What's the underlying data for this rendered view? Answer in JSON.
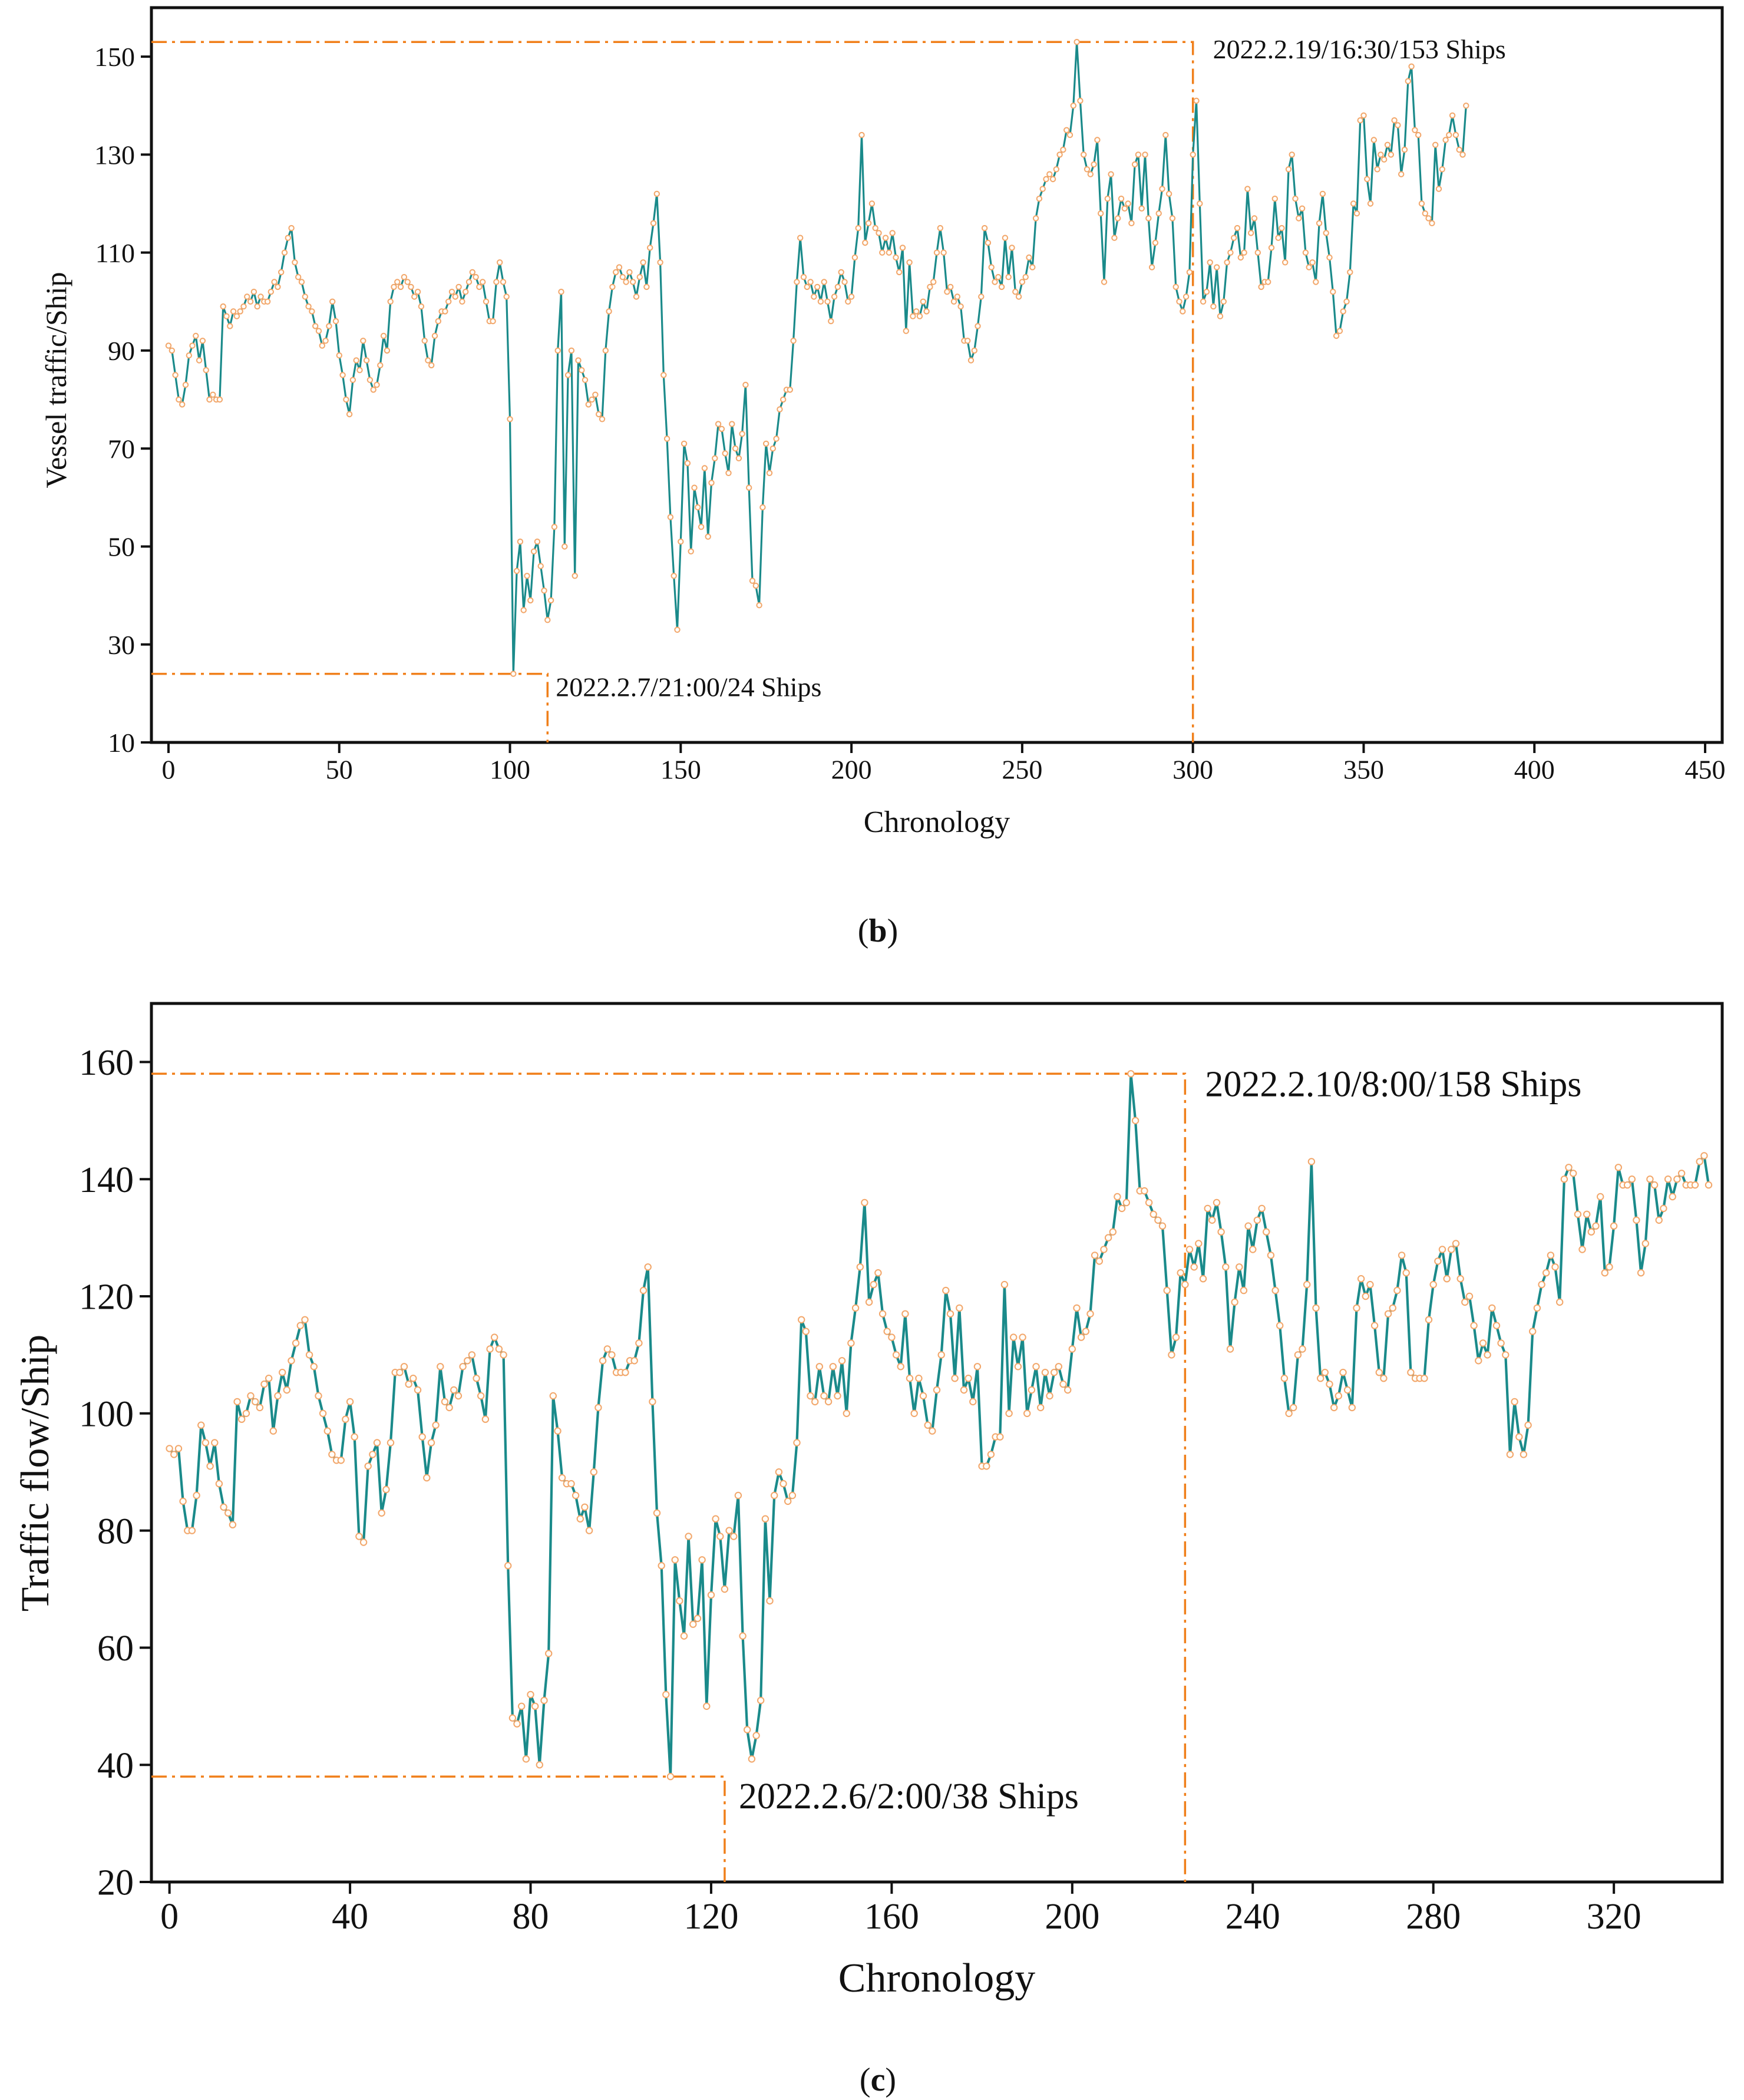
{
  "colors": {
    "line": "#1a8a8a",
    "marker_stroke": "#f2a66a",
    "marker_fill": "#fffdf8",
    "guide": "#f07f1a",
    "frame": "#111111"
  },
  "chart_data": [
    {
      "id": "b",
      "type": "line",
      "panel_label_open": "(",
      "panel_label_letter": "b",
      "panel_label_close": ")",
      "title": "",
      "xlabel": "Chronology",
      "ylabel": "Vessel traffic/Ship",
      "xlim": [
        -5,
        455
      ],
      "ylim": [
        10,
        160
      ],
      "xticks": [
        0,
        50,
        100,
        150,
        200,
        250,
        300,
        350,
        400,
        450
      ],
      "yticks": [
        10,
        30,
        50,
        70,
        90,
        110,
        130,
        150
      ],
      "x_start": 0,
      "x_step": 1,
      "values": [
        91,
        90,
        85,
        80,
        79,
        83,
        89,
        91,
        93,
        88,
        92,
        86,
        80,
        81,
        80,
        80,
        99,
        97,
        95,
        98,
        97,
        98,
        99,
        101,
        100,
        102,
        99,
        101,
        100,
        100,
        102,
        104,
        103,
        106,
        110,
        113,
        115,
        108,
        105,
        104,
        101,
        99,
        98,
        95,
        94,
        91,
        92,
        95,
        100,
        96,
        89,
        85,
        80,
        77,
        84,
        88,
        86,
        92,
        88,
        84,
        82,
        83,
        87,
        93,
        90,
        100,
        103,
        104,
        103,
        105,
        104,
        103,
        101,
        102,
        99,
        92,
        88,
        87,
        93,
        96,
        98,
        98,
        100,
        102,
        101,
        103,
        100,
        102,
        104,
        106,
        105,
        103,
        104,
        100,
        96,
        96,
        104,
        108,
        104,
        101,
        76,
        24,
        45,
        51,
        37,
        44,
        39,
        49,
        51,
        46,
        41,
        35,
        39,
        54,
        90,
        102,
        50,
        85,
        90,
        44,
        88,
        86,
        84,
        79,
        80,
        81,
        77,
        76,
        90,
        98,
        103,
        106,
        107,
        105,
        104,
        106,
        104,
        101,
        105,
        108,
        103,
        111,
        116,
        122,
        108,
        85,
        72,
        56,
        44,
        33,
        51,
        71,
        67,
        49,
        62,
        58,
        54,
        66,
        52,
        63,
        68,
        75,
        74,
        69,
        65,
        75,
        70,
        68,
        73,
        83,
        62,
        43,
        42,
        38,
        58,
        71,
        65,
        70,
        72,
        78,
        80,
        82,
        82,
        92,
        104,
        113,
        105,
        103,
        104,
        101,
        103,
        100,
        104,
        100,
        96,
        101,
        103,
        106,
        104,
        100,
        101,
        109,
        115,
        134,
        112,
        116,
        120,
        115,
        114,
        110,
        113,
        110,
        114,
        109,
        106,
        111,
        94,
        108,
        97,
        98,
        97,
        100,
        98,
        103,
        104,
        110,
        115,
        110,
        102,
        103,
        100,
        101,
        99,
        92,
        92,
        88,
        90,
        95,
        101,
        115,
        112,
        107,
        104,
        105,
        103,
        113,
        105,
        111,
        102,
        101,
        104,
        105,
        109,
        107,
        117,
        121,
        123,
        125,
        126,
        125,
        127,
        130,
        131,
        135,
        134,
        140,
        153,
        141,
        130,
        127,
        126,
        128,
        133,
        118,
        104,
        121,
        126,
        113,
        117,
        121,
        119,
        120,
        116,
        128,
        130,
        119,
        130,
        117,
        107,
        112,
        118,
        123,
        134,
        122,
        117,
        103,
        100,
        98,
        101,
        106,
        130,
        141,
        120,
        100,
        102,
        108,
        99,
        107,
        97,
        100,
        108,
        110,
        113,
        115,
        109,
        110,
        123,
        114,
        117,
        110,
        103,
        104,
        104,
        111,
        121,
        113,
        115,
        108,
        127,
        130,
        121,
        117,
        119,
        110,
        107,
        108,
        104,
        116,
        122,
        114,
        109,
        102,
        93,
        94,
        98,
        100,
        106,
        120,
        118,
        137,
        138,
        125,
        120,
        133,
        127,
        130,
        129,
        132,
        130,
        137,
        136,
        126,
        131,
        145,
        148,
        135,
        134,
        120,
        118,
        117,
        116,
        132,
        123,
        127,
        133,
        134,
        138,
        134,
        131,
        130,
        140
      ],
      "annotations": [
        {
          "x": 111,
          "y": 24,
          "label": "2022.2.7/21:00/24 Ships"
        },
        {
          "x": 300,
          "y": 153,
          "label": "2022.2.19/16:30/153 Ships"
        }
      ]
    },
    {
      "id": "c",
      "type": "line",
      "panel_label_open": "(",
      "panel_label_letter": "c",
      "panel_label_close": ")",
      "title": "",
      "xlabel": "Chronology",
      "ylabel": "Traffic flow/Ship",
      "xlim": [
        -4,
        344
      ],
      "ylim": [
        20,
        170
      ],
      "xticks": [
        0,
        40,
        80,
        120,
        160,
        200,
        240,
        280,
        320
      ],
      "yticks": [
        20,
        40,
        60,
        80,
        100,
        120,
        140,
        160
      ],
      "x_start": 0,
      "x_step": 1,
      "values": [
        94,
        93,
        94,
        85,
        80,
        80,
        86,
        98,
        95,
        91,
        95,
        88,
        84,
        83,
        81,
        102,
        99,
        100,
        103,
        102,
        101,
        105,
        106,
        97,
        103,
        107,
        104,
        109,
        112,
        115,
        116,
        110,
        108,
        103,
        100,
        97,
        93,
        92,
        92,
        99,
        102,
        96,
        79,
        78,
        91,
        93,
        95,
        83,
        87,
        95,
        107,
        107,
        108,
        105,
        106,
        104,
        96,
        89,
        95,
        98,
        108,
        102,
        101,
        104,
        103,
        108,
        109,
        110,
        106,
        103,
        99,
        111,
        113,
        111,
        110,
        74,
        48,
        47,
        50,
        41,
        52,
        50,
        40,
        51,
        59,
        103,
        97,
        89,
        88,
        88,
        86,
        82,
        84,
        80,
        90,
        101,
        109,
        111,
        110,
        107,
        107,
        107,
        109,
        109,
        112,
        121,
        125,
        102,
        83,
        74,
        52,
        38,
        75,
        68,
        62,
        79,
        64,
        65,
        75,
        50,
        69,
        82,
        79,
        70,
        80,
        79,
        86,
        62,
        46,
        41,
        45,
        51,
        82,
        68,
        86,
        90,
        88,
        85,
        86,
        95,
        116,
        114,
        103,
        102,
        108,
        103,
        102,
        108,
        103,
        109,
        100,
        112,
        118,
        125,
        136,
        119,
        122,
        124,
        117,
        114,
        113,
        110,
        108,
        117,
        106,
        100,
        106,
        103,
        98,
        97,
        104,
        110,
        121,
        117,
        106,
        118,
        104,
        106,
        102,
        108,
        91,
        91,
        93,
        96,
        96,
        122,
        100,
        113,
        108,
        113,
        100,
        104,
        108,
        101,
        107,
        103,
        107,
        108,
        105,
        104,
        111,
        118,
        113,
        114,
        117,
        127,
        126,
        128,
        130,
        131,
        137,
        135,
        136,
        158,
        150,
        138,
        138,
        136,
        134,
        133,
        132,
        121,
        110,
        113,
        124,
        122,
        128,
        125,
        129,
        123,
        135,
        133,
        136,
        131,
        125,
        111,
        119,
        125,
        121,
        132,
        128,
        133,
        135,
        131,
        127,
        121,
        115,
        106,
        100,
        101,
        110,
        111,
        122,
        143,
        118,
        106,
        107,
        105,
        101,
        103,
        107,
        104,
        101,
        118,
        123,
        120,
        122,
        115,
        107,
        106,
        117,
        118,
        121,
        127,
        124,
        107,
        106,
        106,
        106,
        116,
        122,
        126,
        128,
        123,
        128,
        129,
        123,
        119,
        120,
        115,
        109,
        112,
        110,
        118,
        115,
        112,
        110,
        93,
        102,
        96,
        93,
        98,
        114,
        118,
        122,
        124,
        127,
        125,
        119,
        140,
        142,
        141,
        134,
        128,
        134,
        131,
        132,
        137,
        124,
        125,
        132,
        142,
        139,
        139,
        140,
        133,
        124,
        129,
        140,
        139,
        133,
        135,
        140,
        137,
        140,
        141,
        139,
        139,
        139,
        143,
        144,
        139
      ],
      "annotations": [
        {
          "x": 123,
          "y": 38,
          "label": "2022.2.6/2:00/38 Ships"
        },
        {
          "x": 225,
          "y": 158,
          "label": "2022.2.10/8:00/158 Ships"
        }
      ]
    }
  ]
}
